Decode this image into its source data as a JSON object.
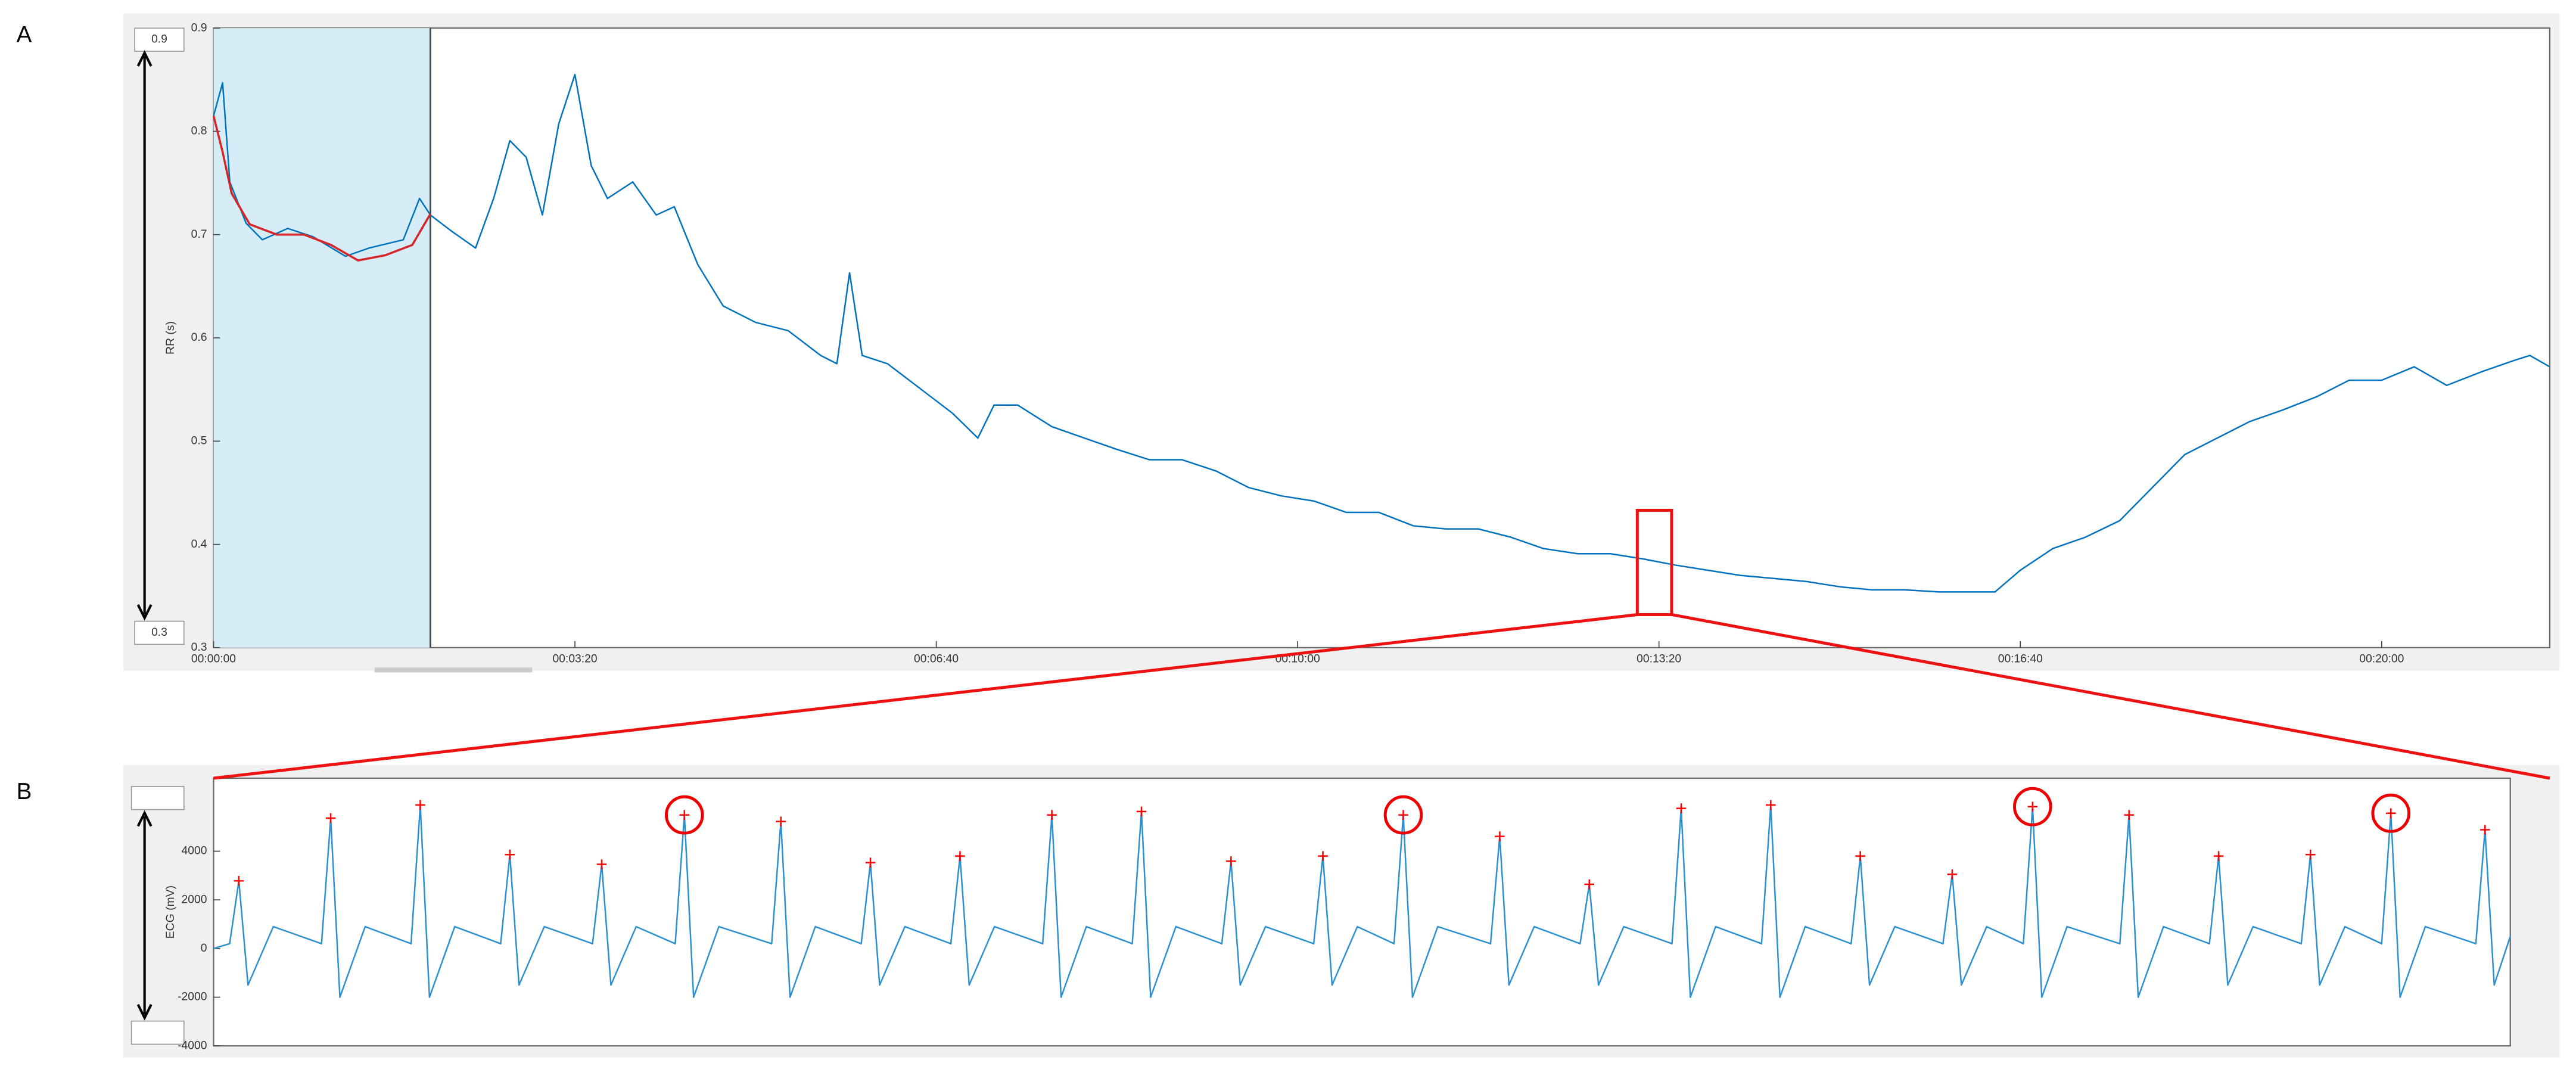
{
  "panel_labels": [
    "A",
    "B"
  ],
  "chart_data": [
    {
      "type": "line",
      "ylabel": "RR (s)",
      "range_box": [
        "0.9",
        "0.3"
      ],
      "x": [
        0,
        5,
        9,
        18,
        27,
        41,
        55,
        73,
        86,
        105,
        114,
        120,
        132,
        145,
        155,
        164,
        173,
        182,
        191,
        200,
        209,
        218,
        232,
        245,
        255,
        268,
        282,
        300,
        318,
        336,
        345,
        352,
        359,
        373,
        391,
        409,
        423,
        432,
        445,
        464,
        482,
        500,
        518,
        536,
        555,
        573,
        591,
        609,
        627,
        645,
        664,
        682,
        700,
        718,
        736,
        755,
        773,
        791,
        809,
        827,
        845,
        864,
        882,
        900,
        918,
        936,
        955,
        973,
        986,
        1000,
        1018,
        1036,
        1055,
        1073,
        1091,
        1109,
        1127,
        1145,
        1164,
        1182,
        1200,
        1218,
        1236,
        1255,
        1273,
        1282,
        1293
      ],
      "series": [
        {
          "color": "#0072bd",
          "values": [
            0.815,
            0.847,
            0.751,
            0.711,
            0.695,
            0.706,
            0.698,
            0.679,
            0.687,
            0.695,
            0.735,
            0.719,
            0.703,
            0.687,
            0.735,
            0.791,
            0.775,
            0.719,
            0.807,
            0.855,
            0.767,
            0.735,
            0.751,
            0.719,
            0.727,
            0.671,
            0.631,
            0.615,
            0.607,
            0.583,
            0.575,
            0.663,
            0.583,
            0.575,
            0.551,
            0.527,
            0.503,
            0.535,
            0.535,
            0.514,
            0.503,
            0.492,
            0.482,
            0.482,
            0.471,
            0.455,
            0.447,
            0.442,
            0.431,
            0.431,
            0.418,
            0.415,
            0.415,
            0.407,
            0.396,
            0.391,
            0.391,
            0.386,
            0.38,
            0.375,
            0.37,
            0.367,
            0.364,
            0.359,
            0.356,
            0.356,
            0.354,
            0.354,
            0.354,
            0.375,
            0.396,
            0.407,
            0.423,
            0.455,
            0.487,
            0.503,
            0.519,
            0.53,
            0.543,
            0.559,
            0.559,
            0.572,
            0.554,
            0.567,
            0.578,
            0.583,
            0.572
          ]
        }
      ],
      "trend": {
        "color": "#d62728",
        "x": [
          0,
          5,
          10,
          20,
          35,
          50,
          65,
          80,
          95,
          110,
          120
        ],
        "values": [
          0.815,
          0.78,
          0.74,
          0.71,
          0.7,
          0.7,
          0.69,
          0.675,
          0.68,
          0.69,
          0.72
        ]
      },
      "shaded_region": {
        "x": [
          0,
          120
        ],
        "color": "#d6edf7"
      },
      "zoom_box": {
        "x": [
          788,
          807
        ],
        "y": [
          0.332,
          0.433
        ],
        "color": "#ee1111"
      },
      "xlim": [
        0,
        1293
      ],
      "ylim": [
        0.3,
        0.9
      ],
      "xticks": [
        {
          "value": 0,
          "label": "00:00:00"
        },
        {
          "value": 200,
          "label": "00:03:20"
        },
        {
          "value": 400,
          "label": "00:06:40"
        },
        {
          "value": 600,
          "label": "00:10:00"
        },
        {
          "value": 800,
          "label": "00:13:20"
        },
        {
          "value": 1000,
          "label": "00:16:40"
        },
        {
          "value": 1200,
          "label": "00:20:00"
        }
      ],
      "yticks": [
        0.3,
        0.4,
        0.5,
        0.6,
        0.7,
        0.8,
        0.9
      ]
    },
    {
      "type": "line",
      "ylabel": "ECG (mV)",
      "x": [
        0,
        0.07,
        0.11,
        0.15,
        0.26,
        0.47,
        0.51,
        0.55,
        0.66,
        0.86,
        0.9,
        0.94,
        1.05,
        1.25,
        1.29,
        1.33,
        1.44,
        1.65,
        1.69,
        1.73,
        1.84,
        2.01,
        2.05,
        2.09,
        2.2,
        2.43,
        2.47,
        2.51,
        2.62,
        2.82,
        2.86,
        2.9,
        3.01,
        3.21,
        3.25,
        3.29,
        3.4,
        3.61,
        3.65,
        3.69,
        3.8,
        4.0,
        4.04,
        4.08,
        4.19,
        4.39,
        4.43,
        4.47,
        4.58,
        4.79,
        4.83,
        4.87,
        4.98,
        5.14,
        5.18,
        5.22,
        5.33,
        5.56,
        5.6,
        5.64,
        5.75,
        5.95,
        5.99,
        6.03,
        6.14,
        6.35,
        6.39,
        6.43,
        6.54,
        6.74,
        6.78,
        6.82,
        6.93,
        7.13,
        7.17,
        7.21,
        7.32,
        7.53,
        7.57,
        7.61,
        7.72,
        7.88,
        7.92,
        7.96,
        8.07,
        8.3,
        8.34,
        8.38,
        8.49,
        8.69,
        8.73,
        8.77,
        8.88,
        9.09,
        9.13,
        9.17,
        9.28,
        9.44,
        9.48,
        9.52,
        9.63,
        9.85,
        9.89,
        9.93,
        10
      ],
      "series": [
        {
          "color": "#2b8fd0",
          "values": [
            0,
            200,
            2780,
            -1500,
            900,
            200,
            5360,
            -2000,
            900,
            200,
            5900,
            -2000,
            900,
            200,
            3860,
            -1500,
            900,
            200,
            3460,
            -1500,
            900,
            200,
            5490,
            -2000,
            900,
            200,
            5220,
            -2000,
            900,
            200,
            3530,
            -1500,
            900,
            200,
            3800,
            -1500,
            900,
            200,
            5490,
            -2000,
            900,
            200,
            5630,
            -2000,
            900,
            200,
            3590,
            -1500,
            900,
            200,
            3800,
            -1500,
            900,
            200,
            5490,
            -2000,
            900,
            200,
            4610,
            -1500,
            900,
            200,
            2640,
            -1500,
            900,
            200,
            5760,
            -2000,
            900,
            200,
            5900,
            -2000,
            900,
            200,
            3800,
            -1500,
            900,
            200,
            3050,
            -1500,
            900,
            200,
            5830,
            -2000,
            900,
            200,
            5490,
            -2000,
            900,
            200,
            3800,
            -1500,
            900,
            200,
            3860,
            -1500,
            900,
            200,
            5560,
            -2000,
            900,
            200,
            4880,
            -1500,
            500
          ]
        }
      ],
      "r_peaks": {
        "color": "#ff0000",
        "x": [
          0.11,
          0.51,
          0.9,
          1.29,
          1.69,
          2.05,
          2.47,
          2.86,
          3.25,
          3.65,
          4.04,
          4.43,
          4.83,
          5.18,
          5.6,
          5.99,
          6.39,
          6.78,
          7.17,
          7.57,
          7.92,
          8.34,
          8.73,
          9.13,
          9.48,
          9.89
        ],
        "values": [
          2780,
          5360,
          5900,
          3860,
          3460,
          5490,
          5220,
          3530,
          3800,
          5490,
          5630,
          3590,
          3800,
          5490,
          4610,
          2640,
          5760,
          5900,
          3800,
          3050,
          5830,
          5490,
          3800,
          3860,
          5560,
          4880
        ],
        "circled": [
          5,
          13,
          20,
          24
        ]
      },
      "xlim": [
        0,
        10
      ],
      "ylim": [
        -4000,
        7000
      ],
      "yticks": [
        -4000,
        -2000,
        0,
        2000,
        4000
      ]
    }
  ]
}
